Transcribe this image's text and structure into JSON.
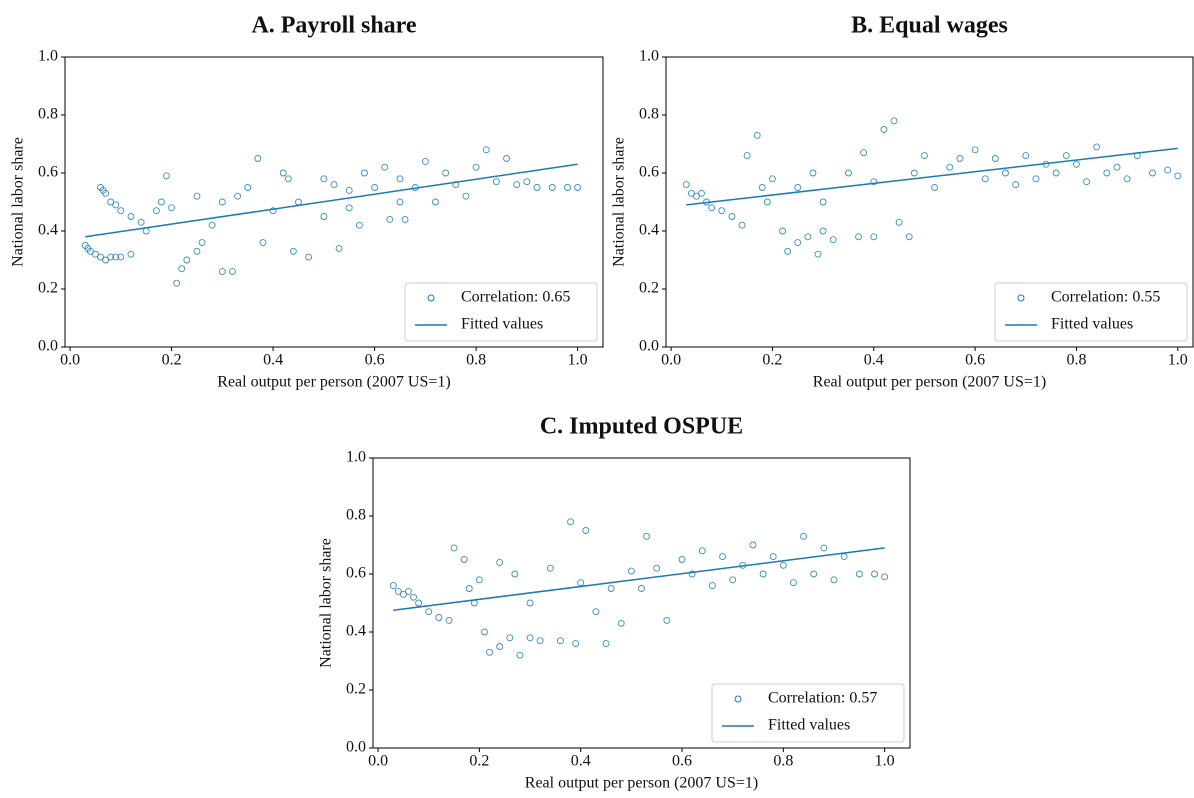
{
  "chart_data": [
    {
      "type": "scatter",
      "title": "A. Payroll share",
      "xlabel": "Real output per person (2007 US=1)",
      "ylabel": "National labor share",
      "xlim": [
        -0.01,
        1.05
      ],
      "ylim": [
        0,
        1
      ],
      "xticks": [
        {
          "value": 0,
          "label": "0.0"
        },
        0.2,
        0.4,
        0.6,
        0.8,
        {
          "value": 1,
          "label": "1.0"
        }
      ],
      "yticks": [
        {
          "value": 0,
          "label": "0.0"
        },
        0.2,
        0.4,
        0.6,
        0.8,
        {
          "value": 1,
          "label": "1.0"
        }
      ],
      "legend": "lower right",
      "series": [
        {
          "name": "Correlation: 0.65",
          "color": "#1a7ab5",
          "x": [
            0.03,
            0.035,
            0.04,
            0.05,
            0.06,
            0.07,
            0.08,
            0.09,
            0.1,
            0.12,
            0.06,
            0.065,
            0.07,
            0.08,
            0.09,
            0.1,
            0.12,
            0.14,
            0.15,
            0.17,
            0.18,
            0.19,
            0.2,
            0.21,
            0.22,
            0.23,
            0.25,
            0.26,
            0.28,
            0.3,
            0.32,
            0.3,
            0.33,
            0.35,
            0.37,
            0.38,
            0.4,
            0.42,
            0.43,
            0.44,
            0.45,
            0.47,
            0.5,
            0.5,
            0.52,
            0.53,
            0.55,
            0.57,
            0.58,
            0.6,
            0.62,
            0.63,
            0.65,
            0.66,
            0.68,
            0.7,
            0.72,
            0.74,
            0.76,
            0.78,
            0.8,
            0.82,
            0.84,
            0.86,
            0.88,
            0.9,
            0.92,
            0.95,
            0.98,
            1.0,
            0.25,
            0.55,
            0.65
          ],
          "y": [
            0.35,
            0.34,
            0.33,
            0.32,
            0.31,
            0.3,
            0.31,
            0.31,
            0.31,
            0.32,
            0.55,
            0.54,
            0.53,
            0.5,
            0.49,
            0.47,
            0.45,
            0.43,
            0.4,
            0.47,
            0.5,
            0.59,
            0.48,
            0.22,
            0.27,
            0.3,
            0.33,
            0.36,
            0.42,
            0.26,
            0.26,
            0.5,
            0.52,
            0.55,
            0.65,
            0.36,
            0.47,
            0.6,
            0.58,
            0.33,
            0.5,
            0.31,
            0.58,
            0.45,
            0.56,
            0.34,
            0.54,
            0.42,
            0.6,
            0.55,
            0.62,
            0.44,
            0.58,
            0.44,
            0.55,
            0.64,
            0.5,
            0.6,
            0.56,
            0.52,
            0.62,
            0.68,
            0.57,
            0.65,
            0.56,
            0.57,
            0.55,
            0.55,
            0.55,
            0.55,
            0.52,
            0.48,
            0.5
          ]
        },
        {
          "name": "Fitted values",
          "type": "line",
          "color": "#1a7ab5",
          "x": [
            0.03,
            1.0
          ],
          "y": [
            0.38,
            0.63
          ]
        }
      ]
    },
    {
      "type": "scatter",
      "title": "B. Equal wages",
      "xlabel": "Real output per person (2007 US=1)",
      "ylabel": "National labor share",
      "xlim": [
        -0.01,
        1.03
      ],
      "ylim": [
        0,
        1
      ],
      "xticks": [
        {
          "value": 0,
          "label": "0.0"
        },
        0.2,
        0.4,
        0.6,
        0.8,
        {
          "value": 1,
          "label": "1.0"
        }
      ],
      "yticks": [
        {
          "value": 0,
          "label": "0.0"
        },
        0.2,
        0.4,
        0.6,
        0.8,
        {
          "value": 1,
          "label": "1.0"
        }
      ],
      "legend": "lower right",
      "series": [
        {
          "name": "Correlation: 0.55",
          "color": "#1a7ab5",
          "x": [
            0.03,
            0.04,
            0.05,
            0.06,
            0.07,
            0.08,
            0.1,
            0.12,
            0.14,
            0.15,
            0.17,
            0.18,
            0.19,
            0.2,
            0.22,
            0.23,
            0.25,
            0.27,
            0.29,
            0.3,
            0.32,
            0.25,
            0.28,
            0.3,
            0.35,
            0.37,
            0.38,
            0.4,
            0.4,
            0.42,
            0.44,
            0.45,
            0.47,
            0.48,
            0.5,
            0.52,
            0.55,
            0.57,
            0.6,
            0.62,
            0.64,
            0.66,
            0.68,
            0.7,
            0.72,
            0.74,
            0.76,
            0.78,
            0.8,
            0.82,
            0.84,
            0.86,
            0.88,
            0.9,
            0.92,
            0.95,
            0.98,
            1.0
          ],
          "y": [
            0.56,
            0.53,
            0.52,
            0.53,
            0.5,
            0.48,
            0.47,
            0.45,
            0.42,
            0.66,
            0.73,
            0.55,
            0.5,
            0.58,
            0.4,
            0.33,
            0.36,
            0.38,
            0.32,
            0.4,
            0.37,
            0.55,
            0.6,
            0.5,
            0.6,
            0.38,
            0.67,
            0.38,
            0.57,
            0.75,
            0.78,
            0.43,
            0.38,
            0.6,
            0.66,
            0.55,
            0.62,
            0.65,
            0.68,
            0.58,
            0.65,
            0.6,
            0.56,
            0.66,
            0.58,
            0.63,
            0.6,
            0.66,
            0.63,
            0.57,
            0.69,
            0.6,
            0.62,
            0.58,
            0.66,
            0.6,
            0.61,
            0.59
          ]
        },
        {
          "name": "Fitted values",
          "type": "line",
          "color": "#1a7ab5",
          "x": [
            0.03,
            1.0
          ],
          "y": [
            0.49,
            0.685
          ]
        }
      ]
    },
    {
      "type": "scatter",
      "title": "C. Imputed OSPUE",
      "xlabel": "Real output per person (2007 US=1)",
      "ylabel": "National labor share",
      "xlim": [
        -0.01,
        1.05
      ],
      "ylim": [
        0,
        1
      ],
      "xticks": [
        {
          "value": 0,
          "label": "0.0"
        },
        0.2,
        0.4,
        0.6,
        0.8,
        {
          "value": 1,
          "label": "1.0"
        }
      ],
      "yticks": [
        {
          "value": 0,
          "label": "0.0"
        },
        0.2,
        0.4,
        0.6,
        0.8,
        {
          "value": 1,
          "label": "1.0"
        }
      ],
      "legend": "lower right",
      "series": [
        {
          "name": "Correlation: 0.57",
          "color": "#1a7ab5",
          "x": [
            0.03,
            0.04,
            0.05,
            0.06,
            0.07,
            0.08,
            0.1,
            0.12,
            0.14,
            0.15,
            0.17,
            0.18,
            0.19,
            0.2,
            0.21,
            0.22,
            0.24,
            0.26,
            0.28,
            0.3,
            0.32,
            0.24,
            0.27,
            0.3,
            0.34,
            0.36,
            0.38,
            0.39,
            0.4,
            0.41,
            0.43,
            0.45,
            0.46,
            0.48,
            0.5,
            0.52,
            0.53,
            0.55,
            0.57,
            0.6,
            0.62,
            0.64,
            0.66,
            0.68,
            0.7,
            0.72,
            0.74,
            0.76,
            0.78,
            0.8,
            0.82,
            0.84,
            0.86,
            0.88,
            0.9,
            0.92,
            0.95,
            0.98,
            1.0
          ],
          "y": [
            0.56,
            0.54,
            0.53,
            0.54,
            0.52,
            0.5,
            0.47,
            0.45,
            0.44,
            0.69,
            0.65,
            0.55,
            0.5,
            0.58,
            0.4,
            0.33,
            0.35,
            0.38,
            0.32,
            0.38,
            0.37,
            0.64,
            0.6,
            0.5,
            0.62,
            0.37,
            0.78,
            0.36,
            0.57,
            0.75,
            0.47,
            0.36,
            0.55,
            0.43,
            0.61,
            0.55,
            0.73,
            0.62,
            0.44,
            0.65,
            0.6,
            0.68,
            0.56,
            0.66,
            0.58,
            0.63,
            0.7,
            0.6,
            0.66,
            0.63,
            0.57,
            0.73,
            0.6,
            0.69,
            0.58,
            0.66,
            0.6,
            0.6,
            0.59
          ]
        },
        {
          "name": "Fitted values",
          "type": "line",
          "color": "#1a7ab5",
          "x": [
            0.03,
            1.0
          ],
          "y": [
            0.475,
            0.69
          ]
        }
      ]
    }
  ]
}
